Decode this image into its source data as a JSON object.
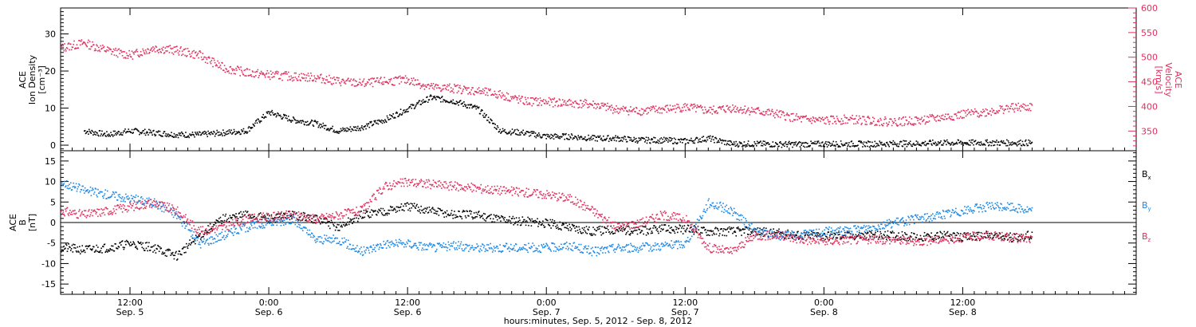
{
  "chart_data": [
    {
      "type": "scatter",
      "panel": "density-velocity",
      "ylabel_left": [
        "ACE",
        "Ion Density",
        "[cm⁻³]"
      ],
      "ylabel_right": [
        "ACE",
        "Velocity",
        "[km/s]"
      ],
      "ylim_left": [
        -1.5,
        37
      ],
      "ylim_right": [
        310,
        600
      ],
      "yticks_left": [
        0,
        10,
        20,
        30
      ],
      "yticks_right": [
        350,
        400,
        450,
        500,
        550,
        600
      ],
      "grid": false,
      "series": [
        {
          "axis": "left",
          "color": "#000000",
          "x_hours": [
            2,
            4,
            6,
            8,
            10,
            12,
            14,
            16,
            18,
            20,
            22,
            24,
            26,
            28,
            30,
            32,
            34,
            36,
            38,
            40,
            42,
            44,
            46,
            48,
            50,
            52,
            54,
            56,
            58,
            60,
            62,
            64,
            66,
            68,
            70,
            72,
            74,
            76,
            78,
            80,
            82,
            84
          ],
          "values": [
            4,
            3,
            4,
            3.5,
            3,
            3,
            3.5,
            4,
            9,
            7,
            6,
            4,
            5,
            7,
            10,
            13,
            12,
            10,
            4,
            3.5,
            2.5,
            2.5,
            2,
            2,
            1.5,
            1.5,
            1.2,
            2,
            0.5,
            0.5,
            0.4,
            0.4,
            0.5,
            0.5,
            0.5,
            0.6,
            0.6,
            0.8,
            0.8,
            0.8,
            0.8,
            0.8
          ]
        },
        {
          "axis": "right",
          "color": "#e0305e",
          "x_hours": [
            0,
            2,
            4,
            6,
            8,
            10,
            12,
            14,
            16,
            18,
            20,
            22,
            24,
            26,
            28,
            30,
            32,
            34,
            36,
            38,
            40,
            42,
            44,
            46,
            48,
            50,
            52,
            54,
            56,
            58,
            60,
            62,
            64,
            66,
            68,
            70,
            72,
            74,
            76,
            78,
            80,
            82,
            84
          ],
          "values": [
            520,
            530,
            515,
            505,
            520,
            515,
            505,
            480,
            470,
            465,
            462,
            460,
            452,
            448,
            452,
            455,
            440,
            438,
            432,
            425,
            412,
            410,
            408,
            405,
            395,
            392,
            395,
            400,
            392,
            398,
            392,
            385,
            375,
            372,
            375,
            372,
            370,
            372,
            378,
            385,
            390,
            398,
            400
          ]
        }
      ]
    },
    {
      "type": "scatter",
      "panel": "magnetic-field",
      "ylabel": [
        "ACE",
        "B",
        "[nT]"
      ],
      "ylim": [
        -17.5,
        17.5
      ],
      "yticks": [
        -15,
        -10,
        -5,
        0,
        5,
        10,
        15
      ],
      "zero_line": true,
      "legend_position": "right",
      "series": [
        {
          "name": "Bx",
          "color": "#000000",
          "x_hours": [
            0,
            2,
            4,
            6,
            8,
            10,
            12,
            14,
            16,
            18,
            20,
            22,
            24,
            26,
            28,
            30,
            32,
            34,
            36,
            38,
            40,
            42,
            44,
            46,
            48,
            50,
            52,
            54,
            56,
            58,
            60,
            62,
            64,
            66,
            68,
            70,
            72,
            74,
            76,
            78,
            80,
            82,
            84
          ],
          "values": [
            -6,
            -6.5,
            -6,
            -5,
            -6,
            -8,
            -3,
            1,
            2,
            1,
            2,
            1,
            -1,
            2,
            3,
            4,
            3,
            2,
            2,
            1,
            0.5,
            0,
            -1,
            -2,
            -1.5,
            -2,
            -1.5,
            -1.5,
            -2,
            -2,
            -2,
            -2.5,
            -3,
            -3,
            -3,
            -3,
            -3,
            -3.5,
            -3,
            -3.5,
            -3,
            -3.5,
            -3
          ]
        },
        {
          "name": "By",
          "color": "#1e88e5",
          "x_hours": [
            0,
            2,
            4,
            6,
            8,
            10,
            12,
            14,
            16,
            18,
            20,
            22,
            24,
            26,
            28,
            30,
            32,
            34,
            36,
            38,
            40,
            42,
            44,
            46,
            48,
            50,
            52,
            54,
            56,
            58,
            60,
            62,
            64,
            66,
            68,
            70,
            72,
            74,
            76,
            78,
            80,
            82,
            84
          ],
          "values": [
            10,
            8,
            7,
            6,
            5,
            2,
            -5,
            -3,
            -1,
            0,
            1,
            -4,
            -4,
            -7,
            -5,
            -5,
            -6,
            -5.5,
            -6,
            -6,
            -6,
            -6,
            -5.5,
            -7,
            -6,
            -6,
            -5.5,
            -5,
            5,
            3,
            -2,
            -3,
            -3,
            -2,
            -2,
            -1,
            0,
            1,
            2,
            3,
            4,
            4,
            3
          ]
        },
        {
          "name": "Bz",
          "color": "#e0305e",
          "x_hours": [
            0,
            2,
            4,
            6,
            8,
            10,
            12,
            14,
            16,
            18,
            20,
            22,
            24,
            26,
            28,
            30,
            32,
            34,
            36,
            38,
            40,
            42,
            44,
            46,
            48,
            50,
            52,
            54,
            56,
            58,
            60,
            62,
            64,
            66,
            68,
            70,
            72,
            74,
            76,
            78,
            80,
            82,
            84
          ],
          "values": [
            3,
            2,
            3,
            4,
            5,
            3,
            -2,
            -1,
            1,
            1.5,
            2,
            1,
            2,
            3,
            9,
            10,
            9.5,
            9,
            8.5,
            8,
            7.5,
            7,
            6,
            3,
            -1,
            0,
            2,
            1,
            -6,
            -7,
            -3,
            -3,
            -4,
            -4.5,
            -4,
            -4,
            -4,
            -4.5,
            -4,
            -3.5,
            -3,
            -3.5,
            -4
          ]
        }
      ]
    }
  ],
  "x_axis": {
    "start": "Sep. 5, 2012 06:00",
    "xlim_hours": [
      0,
      93
    ],
    "ticks": [
      {
        "hour": 6,
        "time": "12:00",
        "day": "Sep. 5"
      },
      {
        "hour": 18,
        "time": "0:00",
        "day": "Sep. 6"
      },
      {
        "hour": 30,
        "time": "12:00",
        "day": "Sep. 6"
      },
      {
        "hour": 42,
        "time": "0:00",
        "day": "Sep. 7"
      },
      {
        "hour": 54,
        "time": "12:00",
        "day": "Sep. 7"
      },
      {
        "hour": 66,
        "time": "0:00",
        "day": "Sep. 8"
      },
      {
        "hour": 78,
        "time": "12:00",
        "day": "Sep. 8"
      }
    ],
    "xlabel": "hours:minutes, Sep.  5, 2012 - Sep.  8, 2012"
  },
  "legend": {
    "bx": "B",
    "by": "B",
    "bz": "B",
    "bx_sub": "x",
    "by_sub": "y",
    "bz_sub": "z"
  }
}
